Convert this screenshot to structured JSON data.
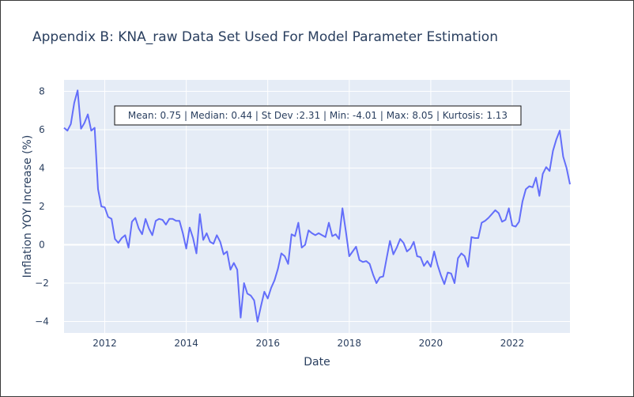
{
  "chart_data": {
    "type": "line",
    "title": "Appendix B: KNA_raw Data Set Used For Model Parameter Estimation",
    "xlabel": "Date",
    "ylabel": "Inflation YOY Increase (%)",
    "xlim": [
      "2011-01-01",
      "2023-06-01"
    ],
    "ylim": [
      -4.6,
      8.6
    ],
    "x_ticks": [
      "2012",
      "2014",
      "2016",
      "2018",
      "2020",
      "2022"
    ],
    "y_ticks": [
      -4,
      -2,
      0,
      2,
      4,
      6,
      8
    ],
    "grid": true,
    "legend": "none",
    "annotation": "Mean: 0.75 | Median: 0.44 | St Dev :2.31 | Min: -4.01 | Max: 8.05 | Kurtosis: 1.13",
    "series": [
      {
        "color": "#636efa",
        "x": [
          "2011-01",
          "2011-02",
          "2011-03",
          "2011-04",
          "2011-05",
          "2011-06",
          "2011-07",
          "2011-08",
          "2011-09",
          "2011-10",
          "2011-11",
          "2011-12",
          "2012-01",
          "2012-02",
          "2012-03",
          "2012-04",
          "2012-05",
          "2012-06",
          "2012-07",
          "2012-08",
          "2012-09",
          "2012-10",
          "2012-11",
          "2012-12",
          "2013-01",
          "2013-02",
          "2013-03",
          "2013-04",
          "2013-05",
          "2013-06",
          "2013-07",
          "2013-08",
          "2013-09",
          "2013-10",
          "2013-11",
          "2013-12",
          "2014-01",
          "2014-02",
          "2014-03",
          "2014-04",
          "2014-05",
          "2014-06",
          "2014-07",
          "2014-08",
          "2014-09",
          "2014-10",
          "2014-11",
          "2014-12",
          "2015-01",
          "2015-02",
          "2015-03",
          "2015-04",
          "2015-05",
          "2015-06",
          "2015-07",
          "2015-08",
          "2015-09",
          "2015-10",
          "2015-11",
          "2015-12",
          "2016-01",
          "2016-02",
          "2016-03",
          "2016-04",
          "2016-05",
          "2016-06",
          "2016-07",
          "2016-08",
          "2016-09",
          "2016-10",
          "2016-11",
          "2016-12",
          "2017-01",
          "2017-02",
          "2017-03",
          "2017-04",
          "2017-05",
          "2017-06",
          "2017-07",
          "2017-08",
          "2017-09",
          "2017-10",
          "2017-11",
          "2017-12",
          "2018-01",
          "2018-02",
          "2018-03",
          "2018-04",
          "2018-05",
          "2018-06",
          "2018-07",
          "2018-08",
          "2018-09",
          "2018-10",
          "2018-11",
          "2018-12",
          "2019-01",
          "2019-02",
          "2019-03",
          "2019-04",
          "2019-05",
          "2019-06",
          "2019-07",
          "2019-08",
          "2019-09",
          "2019-10",
          "2019-11",
          "2019-12",
          "2020-01",
          "2020-02",
          "2020-03",
          "2020-04",
          "2020-05",
          "2020-06",
          "2020-07",
          "2020-08",
          "2020-09",
          "2020-10",
          "2020-11",
          "2020-12",
          "2021-01",
          "2021-02",
          "2021-03",
          "2021-04",
          "2021-05",
          "2021-06",
          "2021-07",
          "2021-08",
          "2021-09",
          "2021-10",
          "2021-11",
          "2021-12",
          "2022-01",
          "2022-02",
          "2022-03",
          "2022-04",
          "2022-05",
          "2022-06",
          "2022-07",
          "2022-08",
          "2022-09",
          "2022-10",
          "2022-11",
          "2022-12",
          "2023-01",
          "2023-02",
          "2023-03",
          "2023-04",
          "2023-05",
          "2023-06"
        ],
        "y": [
          6.1,
          5.95,
          6.3,
          7.4,
          8.05,
          6.05,
          6.35,
          6.8,
          5.95,
          6.1,
          2.9,
          2.0,
          1.95,
          1.45,
          1.35,
          0.3,
          0.1,
          0.35,
          0.5,
          -0.15,
          1.2,
          1.4,
          0.85,
          0.55,
          1.35,
          0.85,
          0.5,
          1.25,
          1.35,
          1.3,
          1.05,
          1.35,
          1.35,
          1.25,
          1.25,
          0.6,
          -0.2,
          0.9,
          0.35,
          -0.45,
          1.6,
          0.25,
          0.6,
          0.15,
          0.05,
          0.5,
          0.15,
          -0.5,
          -0.35,
          -1.3,
          -0.95,
          -1.3,
          -3.8,
          -2.0,
          -2.55,
          -2.65,
          -2.9,
          -4.01,
          -3.2,
          -2.45,
          -2.8,
          -2.25,
          -1.85,
          -1.25,
          -0.45,
          -0.6,
          -1.0,
          0.55,
          0.45,
          1.15,
          -0.15,
          0.0,
          0.75,
          0.6,
          0.5,
          0.6,
          0.5,
          0.4,
          1.15,
          0.45,
          0.55,
          0.3,
          1.9,
          0.7,
          -0.6,
          -0.35,
          -0.1,
          -0.8,
          -0.9,
          -0.85,
          -1.0,
          -1.55,
          -2.0,
          -1.7,
          -1.65,
          -0.7,
          0.2,
          -0.5,
          -0.15,
          0.3,
          0.1,
          -0.35,
          -0.2,
          0.15,
          -0.6,
          -0.65,
          -1.1,
          -0.85,
          -1.15,
          -0.35,
          -1.05,
          -1.6,
          -2.05,
          -1.45,
          -1.5,
          -2.0,
          -0.7,
          -0.45,
          -0.6,
          -1.15,
          0.4,
          0.35,
          0.35,
          1.15,
          1.25,
          1.4,
          1.6,
          1.8,
          1.65,
          1.2,
          1.3,
          1.9,
          1.0,
          0.95,
          1.2,
          2.25,
          2.9,
          3.05,
          3.0,
          3.5,
          2.55,
          3.7,
          4.05,
          3.85,
          4.9,
          5.5,
          5.95,
          4.6,
          4.0,
          3.15
        ]
      }
    ]
  }
}
